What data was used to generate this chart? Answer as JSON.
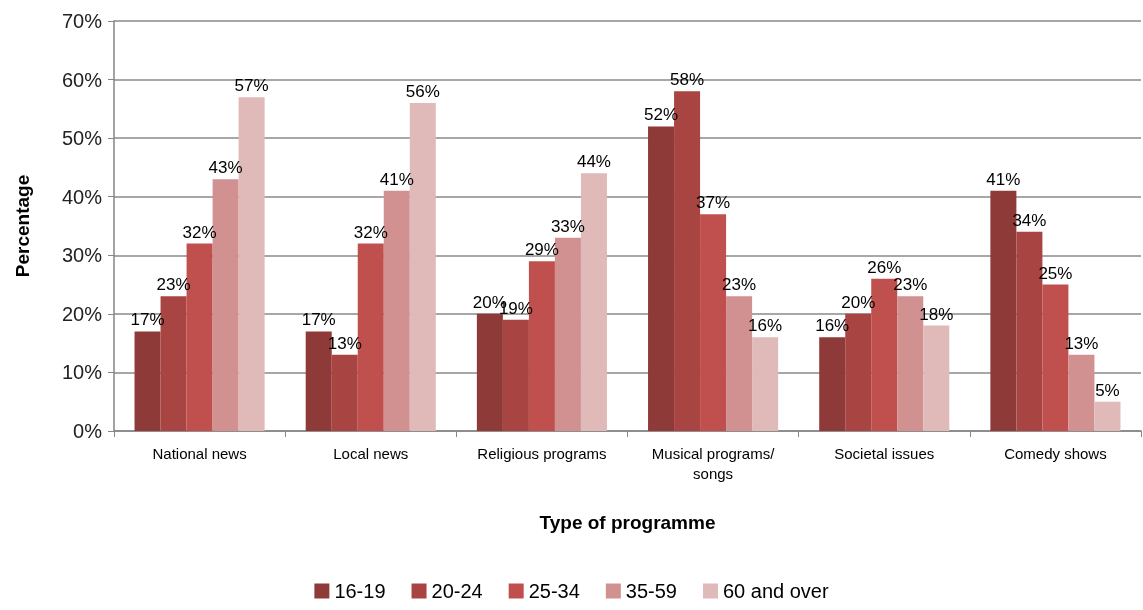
{
  "chart_data": {
    "type": "bar",
    "xlabel": "Type of programme",
    "ylabel": "Percentage",
    "categories": [
      "National news",
      "Local news",
      "Religious programs",
      "Musical programs/songs",
      "Societal issues",
      "Comedy shows"
    ],
    "series": [
      {
        "name": "16-19",
        "color": "#8e3a38",
        "values": [
          17,
          17,
          20,
          52,
          16,
          41
        ],
        "value_labels": [
          "17%",
          "17%",
          "20%",
          "52%",
          "16%",
          "41%"
        ]
      },
      {
        "name": "20-24",
        "color": "#a84543",
        "values": [
          23,
          13,
          19,
          58,
          20,
          34
        ],
        "value_labels": [
          "23%",
          "13%",
          "19%",
          "58%",
          "20%",
          "34%"
        ]
      },
      {
        "name": "25-34",
        "color": "#c0504d",
        "values": [
          32,
          32,
          29,
          37,
          26,
          25
        ],
        "value_labels": [
          "32%",
          "32%",
          "29%",
          "37%",
          "26%",
          "25%"
        ]
      },
      {
        "name": "35-59",
        "color": "#d19190",
        "values": [
          43,
          41,
          33,
          23,
          23,
          13
        ],
        "value_labels": [
          "43%",
          "41%",
          "33%",
          "23%",
          "23%",
          "13%"
        ]
      },
      {
        "name": "60 and over",
        "color": "#e0b9b9",
        "values": [
          57,
          56,
          44,
          16,
          18,
          5
        ],
        "value_labels": [
          "57%",
          "56%",
          "44%",
          "16%",
          "18%",
          "5%"
        ]
      }
    ],
    "ylim": [
      0,
      70
    ],
    "yticks": [
      {
        "value": 0,
        "label": "0%"
      },
      {
        "value": 10,
        "label": "10%"
      },
      {
        "value": 20,
        "label": "20%"
      },
      {
        "value": 30,
        "label": "30%"
      },
      {
        "value": 40,
        "label": "40%"
      },
      {
        "value": 50,
        "label": "50%"
      },
      {
        "value": 60,
        "label": "60%"
      },
      {
        "value": 70,
        "label": "70%"
      }
    ],
    "grid": "y",
    "legend": "bottom"
  }
}
